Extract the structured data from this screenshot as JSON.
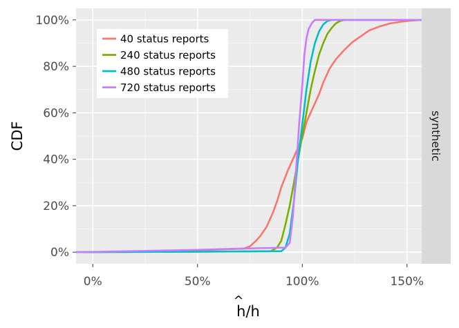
{
  "chart_data": {
    "type": "line",
    "title": "",
    "xlabel": "h/h",
    "xlabel_hat": "^",
    "ylabel": "CDF",
    "facet_label": "synthetic",
    "xlim": [
      -0.08,
      1.57
    ],
    "ylim": [
      -0.05,
      1.05
    ],
    "x_ticks": [
      0,
      0.5,
      1,
      1.5
    ],
    "x_tick_labels": [
      "0%",
      "50%",
      "100%",
      "150%"
    ],
    "y_ticks": [
      0,
      0.2,
      0.4,
      0.6,
      0.8,
      1
    ],
    "y_tick_labels": [
      "0%",
      "20%",
      "40%",
      "60%",
      "80%",
      "100%"
    ],
    "grid": true,
    "legend_position": "top-left",
    "colors": {
      "panel": "#ebebeb",
      "grid_major": "#ffffff",
      "strip": "#d9d9d9"
    },
    "series": [
      {
        "name": "40 status reports",
        "color": "#F8766D",
        "points": [
          [
            -0.08,
            0
          ],
          [
            0.2,
            0.003
          ],
          [
            0.5,
            0.008
          ],
          [
            0.72,
            0.015
          ],
          [
            0.75,
            0.025
          ],
          [
            0.78,
            0.05
          ],
          [
            0.8,
            0.07
          ],
          [
            0.83,
            0.11
          ],
          [
            0.86,
            0.17
          ],
          [
            0.88,
            0.22
          ],
          [
            0.9,
            0.28
          ],
          [
            0.93,
            0.35
          ],
          [
            0.96,
            0.41
          ],
          [
            1.0,
            0.49
          ],
          [
            1.02,
            0.56
          ],
          [
            1.05,
            0.62
          ],
          [
            1.08,
            0.68
          ],
          [
            1.1,
            0.73
          ],
          [
            1.13,
            0.79
          ],
          [
            1.16,
            0.83
          ],
          [
            1.2,
            0.87
          ],
          [
            1.24,
            0.905
          ],
          [
            1.28,
            0.93
          ],
          [
            1.32,
            0.955
          ],
          [
            1.37,
            0.972
          ],
          [
            1.42,
            0.985
          ],
          [
            1.47,
            0.992
          ],
          [
            1.52,
            0.997
          ],
          [
            1.57,
            1.0
          ]
        ]
      },
      {
        "name": "240 status reports",
        "color": "#7CAE00",
        "points": [
          [
            -0.08,
            0
          ],
          [
            0.5,
            0.002
          ],
          [
            0.85,
            0.004
          ],
          [
            0.88,
            0.02
          ],
          [
            0.9,
            0.05
          ],
          [
            0.92,
            0.12
          ],
          [
            0.94,
            0.2
          ],
          [
            0.96,
            0.3
          ],
          [
            0.98,
            0.4
          ],
          [
            1.0,
            0.5
          ],
          [
            1.02,
            0.6
          ],
          [
            1.04,
            0.7
          ],
          [
            1.06,
            0.78
          ],
          [
            1.08,
            0.85
          ],
          [
            1.1,
            0.9
          ],
          [
            1.12,
            0.94
          ],
          [
            1.14,
            0.965
          ],
          [
            1.16,
            0.985
          ],
          [
            1.18,
            0.995
          ],
          [
            1.2,
            1.0
          ],
          [
            1.57,
            1.0
          ]
        ]
      },
      {
        "name": "480 status reports",
        "color": "#00BFC4",
        "points": [
          [
            -0.08,
            0
          ],
          [
            0.5,
            0.002
          ],
          [
            0.9,
            0.004
          ],
          [
            0.92,
            0.02
          ],
          [
            0.94,
            0.08
          ],
          [
            0.96,
            0.22
          ],
          [
            0.98,
            0.4
          ],
          [
            1.0,
            0.55
          ],
          [
            1.02,
            0.7
          ],
          [
            1.04,
            0.82
          ],
          [
            1.06,
            0.9
          ],
          [
            1.08,
            0.95
          ],
          [
            1.1,
            0.98
          ],
          [
            1.12,
            0.995
          ],
          [
            1.14,
            1.0
          ],
          [
            1.57,
            1.0
          ]
        ]
      },
      {
        "name": "720 status reports",
        "color": "#C77CFF",
        "points": [
          [
            -0.08,
            0
          ],
          [
            0.5,
            0.01
          ],
          [
            0.7,
            0.015
          ],
          [
            0.92,
            0.02
          ],
          [
            0.94,
            0.04
          ],
          [
            0.955,
            0.15
          ],
          [
            0.97,
            0.35
          ],
          [
            0.985,
            0.55
          ],
          [
            1.0,
            0.72
          ],
          [
            1.01,
            0.85
          ],
          [
            1.02,
            0.92
          ],
          [
            1.03,
            0.96
          ],
          [
            1.045,
            0.985
          ],
          [
            1.06,
            1.0
          ],
          [
            1.57,
            1.0
          ]
        ]
      }
    ]
  }
}
